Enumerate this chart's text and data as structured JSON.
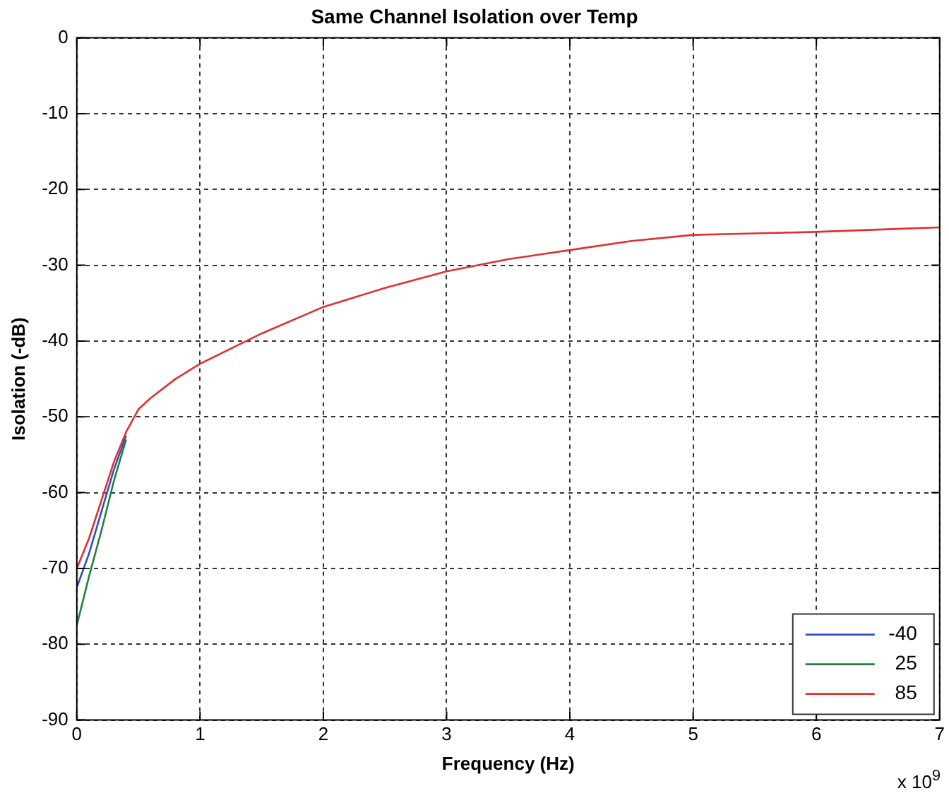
{
  "chart_data": {
    "type": "line",
    "title": "Same Channel Isolation over Temp",
    "xlabel": "Frequency (Hz)",
    "ylabel": "Isolation (-dB)",
    "annotations": [
      "x 10$^{9}$"
    ],
    "xlim": [
      0,
      7
    ],
    "xticks": [
      0,
      1,
      2,
      3,
      4,
      5,
      6,
      7
    ],
    "ylim": [
      -90,
      0
    ],
    "yticks": [
      -90,
      -80,
      -70,
      -60,
      -50,
      -40,
      -30,
      -20,
      -10,
      0
    ],
    "grid": true,
    "legend": "bottom right",
    "marker": "none",
    "line_style": "solid",
    "x": [
      0,
      0.1,
      0.2,
      0.3,
      0.4,
      0.5,
      0.6,
      0.8,
      1,
      1.5,
      2,
      2.5,
      3,
      3.5,
      4,
      4.5,
      5,
      5.5,
      6,
      6.5,
      7
    ],
    "series": [
      {
        "name": "-40",
        "color": "#3050c0",
        "values": [
          -72.5,
          -68,
          -62.5,
          -57,
          -52.5,
          null,
          null,
          null,
          null,
          null,
          null,
          null,
          null,
          null,
          null,
          null,
          null,
          null,
          null,
          null,
          null
        ]
      },
      {
        "name": "25",
        "color": "#208040",
        "values": [
          -77.5,
          -71,
          -65,
          -58.5,
          -53,
          null,
          null,
          null,
          null,
          null,
          null,
          null,
          null,
          null,
          null,
          null,
          null,
          null,
          null,
          null,
          null
        ]
      },
      {
        "name": "85",
        "color": "#e03030",
        "values": [
          -70,
          -66,
          -61,
          -56,
          -52,
          -49,
          -47.5,
          -45,
          -43,
          -39,
          -35.5,
          -33,
          -30.8,
          -29.2,
          -28,
          -26.8,
          -26,
          -25.8,
          -25.6,
          -25.3,
          -25
        ]
      }
    ]
  }
}
